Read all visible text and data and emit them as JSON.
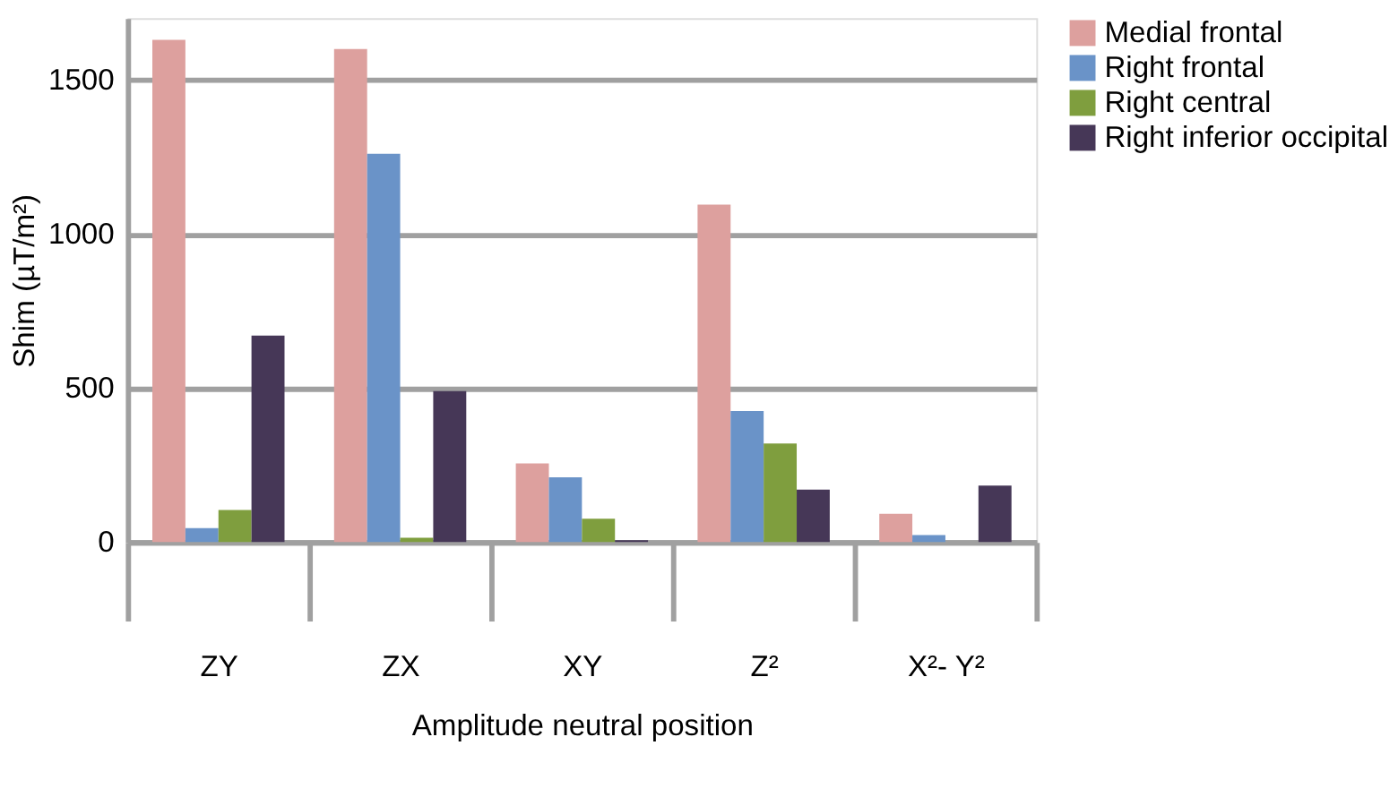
{
  "chart_data": {
    "type": "bar",
    "xlabel": "Amplitude neutral position",
    "ylabel": "Shim (µT/m²)",
    "categories": [
      "ZY",
      "ZX",
      "XY",
      "Z²",
      "X²- Y²"
    ],
    "series": [
      {
        "name": "Medial frontal",
        "color": "#dda09e",
        "values": [
          1630,
          1600,
          255,
          1095,
          92
        ]
      },
      {
        "name": "Right frontal",
        "color": "#6a93c8",
        "values": [
          45,
          1260,
          210,
          425,
          23
        ]
      },
      {
        "name": "Right central",
        "color": "#7f9e3e",
        "values": [
          104,
          14,
          76,
          320,
          0
        ]
      },
      {
        "name": "Right inferior occipital",
        "color": "#463757",
        "values": [
          670,
          490,
          6,
          170,
          183
        ]
      }
    ],
    "ylim": [
      0,
      1700
    ],
    "yticks": [
      0,
      500,
      1000,
      1500
    ],
    "grid": "y",
    "legend": "top right"
  }
}
